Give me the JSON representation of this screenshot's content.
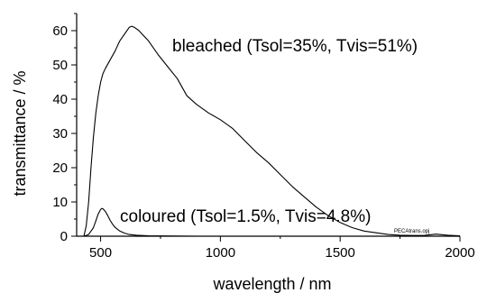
{
  "chart_data": {
    "type": "line",
    "title": "",
    "xlabel": "wavelength / nm",
    "ylabel": "transmittance / %",
    "xlim": [
      400,
      2000
    ],
    "ylim": [
      0,
      65
    ],
    "x_ticks": [
      500,
      1000,
      1500,
      2000
    ],
    "y_ticks": [
      0,
      10,
      20,
      30,
      40,
      50,
      60
    ],
    "grid": false,
    "legend": "none",
    "annotations": [
      {
        "text": "bleached (Tsol=35%, Tvis=51%)"
      },
      {
        "text": "coloured (Tsol=1.5%, Tvis=4.8%)"
      },
      {
        "text": "PECAtrans.opj"
      }
    ],
    "series": [
      {
        "x": [
          430,
          440,
          450,
          460,
          470,
          480,
          490,
          500,
          510,
          520,
          540,
          560,
          580,
          600,
          620,
          630,
          640,
          660,
          680,
          700,
          740,
          780,
          820,
          860,
          900,
          950,
          1000,
          1050,
          1100,
          1150,
          1200,
          1250,
          1300,
          1350,
          1400,
          1450,
          1500,
          1550,
          1600,
          1650,
          1700,
          1750,
          1800,
          1850,
          1900,
          1950,
          2000
        ],
        "values": [
          0,
          3,
          10,
          20,
          29,
          36,
          41,
          45,
          47.5,
          49,
          51.5,
          54,
          57,
          59,
          61,
          61.3,
          61,
          60,
          58.5,
          57,
          53,
          49.5,
          46,
          41,
          38.5,
          36,
          34,
          31.5,
          28,
          24.5,
          21.5,
          18,
          14.5,
          11.5,
          8.5,
          6,
          4,
          2.5,
          1.5,
          1,
          0.5,
          0.3,
          0.2,
          0.2,
          0.6,
          0.3,
          0.1
        ]
      },
      {
        "x": [
          430,
          450,
          470,
          480,
          490,
          500,
          505,
          510,
          520,
          530,
          540,
          550,
          560,
          580,
          600,
          620,
          650,
          700,
          800,
          900,
          1000,
          1200,
          1500,
          1800,
          2000
        ],
        "values": [
          0,
          0.5,
          2.5,
          4.5,
          6.5,
          7.8,
          8.1,
          8,
          7.2,
          6,
          4.6,
          3.5,
          2.6,
          1.5,
          0.9,
          0.5,
          0.3,
          0.1,
          0.05,
          0,
          0,
          0,
          0,
          0,
          0
        ]
      }
    ]
  }
}
